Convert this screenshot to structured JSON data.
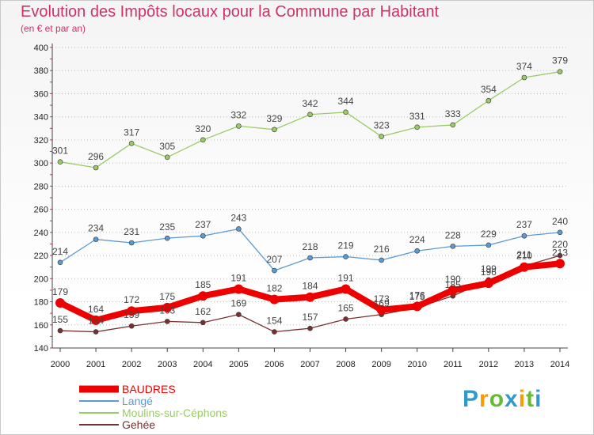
{
  "title": "Evolution des Impôts locaux pour la Commune par Habitant",
  "subtitle": "(en € et par an)",
  "logo": {
    "text": "Proxiti",
    "letters": [
      "P",
      "r",
      "o",
      "x",
      "i",
      "t",
      "i"
    ],
    "colors": [
      "#3399cc",
      "#ff9900",
      "#66bb33",
      "#3399cc",
      "#ff9900",
      "#66bb33",
      "#3399cc"
    ]
  },
  "chart_data": {
    "type": "line",
    "title": "Evolution des Impôts locaux pour la Commune par Habitant",
    "subtitle": "(en € et par an)",
    "x": [
      "2000",
      "2001",
      "2002",
      "2003",
      "2004",
      "2005",
      "2006",
      "2007",
      "2008",
      "2009",
      "2010",
      "2011",
      "2012",
      "2013",
      "2014"
    ],
    "y_ticks": [
      140,
      160,
      180,
      200,
      220,
      240,
      260,
      280,
      300,
      320,
      340,
      360,
      380,
      400
    ],
    "ylim": [
      140,
      400
    ],
    "grid": "horizontal-dotted",
    "legend_position": "bottom-left",
    "series": [
      {
        "name": "Moulins-sur-Céphons",
        "color": "#99cc66",
        "values": [
          301,
          296,
          317,
          305,
          320,
          332,
          329,
          342,
          344,
          323,
          331,
          333,
          354,
          374,
          379
        ],
        "labels": [
          "301",
          "296",
          "317",
          "305",
          "320",
          "332",
          "329",
          "342",
          "344",
          "323",
          "331",
          "333",
          "354",
          "374",
          "379"
        ]
      },
      {
        "name": "Langé",
        "color": "#5b9bd5",
        "values": [
          214,
          234,
          231,
          235,
          237,
          243,
          207,
          218,
          219,
          216,
          224,
          228,
          229,
          237,
          240
        ],
        "labels": [
          "214",
          "234",
          "231",
          "235",
          "237",
          "243",
          "207",
          "218",
          "219",
          "216",
          "224",
          "228",
          "229",
          "237",
          "240"
        ]
      },
      {
        "name": "Gehée",
        "color": "#7b3030",
        "values": [
          155,
          154,
          159,
          163,
          162,
          169,
          154,
          157,
          165,
          169,
          175,
          185,
          199,
          211,
          220
        ],
        "labels": [
          "155",
          "154",
          "159",
          "163",
          "162",
          "169",
          "154",
          "157",
          "165",
          "169",
          "175",
          "185",
          "199",
          "211",
          "220"
        ]
      },
      {
        "name": "BAUDRES",
        "color": "#ee0000",
        "values": [
          179,
          164,
          172,
          175,
          185,
          191,
          182,
          184,
          191,
          173,
          176,
          190,
          196,
          210,
          213
        ],
        "labels": [
          "179",
          "164",
          "172",
          "175",
          "185",
          "191",
          "182",
          "184",
          "191",
          "173",
          "176",
          "190",
          "196",
          "210",
          "213"
        ]
      }
    ],
    "legend": [
      {
        "name": "BAUDRES",
        "color": "#ee0000",
        "thickness": 9,
        "text_color": "#ee0000"
      },
      {
        "name": "Langé",
        "color": "#5b9bd5",
        "thickness": 2,
        "text_color": "#5b9bd5"
      },
      {
        "name": "Moulins-sur-Céphons",
        "color": "#99cc66",
        "thickness": 2,
        "text_color": "#99cc66"
      },
      {
        "name": "Gehée",
        "color": "#7b3030",
        "thickness": 2,
        "text_color": "#7b3030"
      }
    ]
  }
}
